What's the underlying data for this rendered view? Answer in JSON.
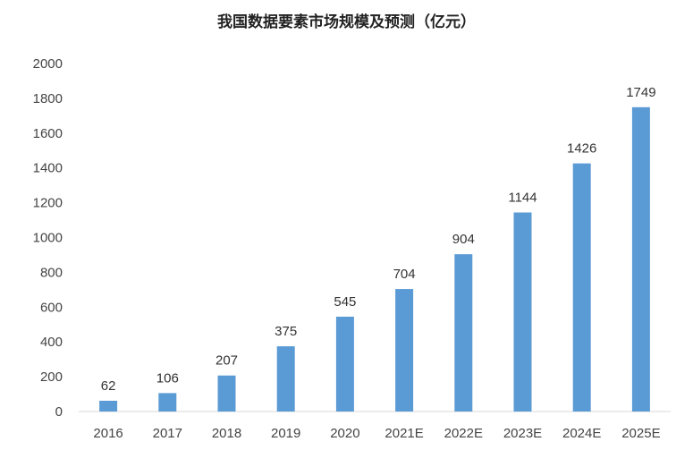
{
  "chart_data": {
    "type": "bar",
    "title": "我国数据要素市场规模及预测（亿元）",
    "xlabel": "",
    "ylabel": "",
    "categories": [
      "2016",
      "2017",
      "2018",
      "2019",
      "2020",
      "2021E",
      "2022E",
      "2023E",
      "2024E",
      "2025E"
    ],
    "values": [
      62,
      106,
      207,
      375,
      545,
      704,
      904,
      1144,
      1426,
      1749
    ],
    "ylim": [
      0,
      2000
    ],
    "yticks": [
      0,
      200,
      400,
      600,
      800,
      1000,
      1200,
      1400,
      1600,
      1800,
      2000
    ],
    "grid": false,
    "legend": "none",
    "bar_color": "#5B9BD5",
    "axis_color": "#D9D9D9"
  }
}
